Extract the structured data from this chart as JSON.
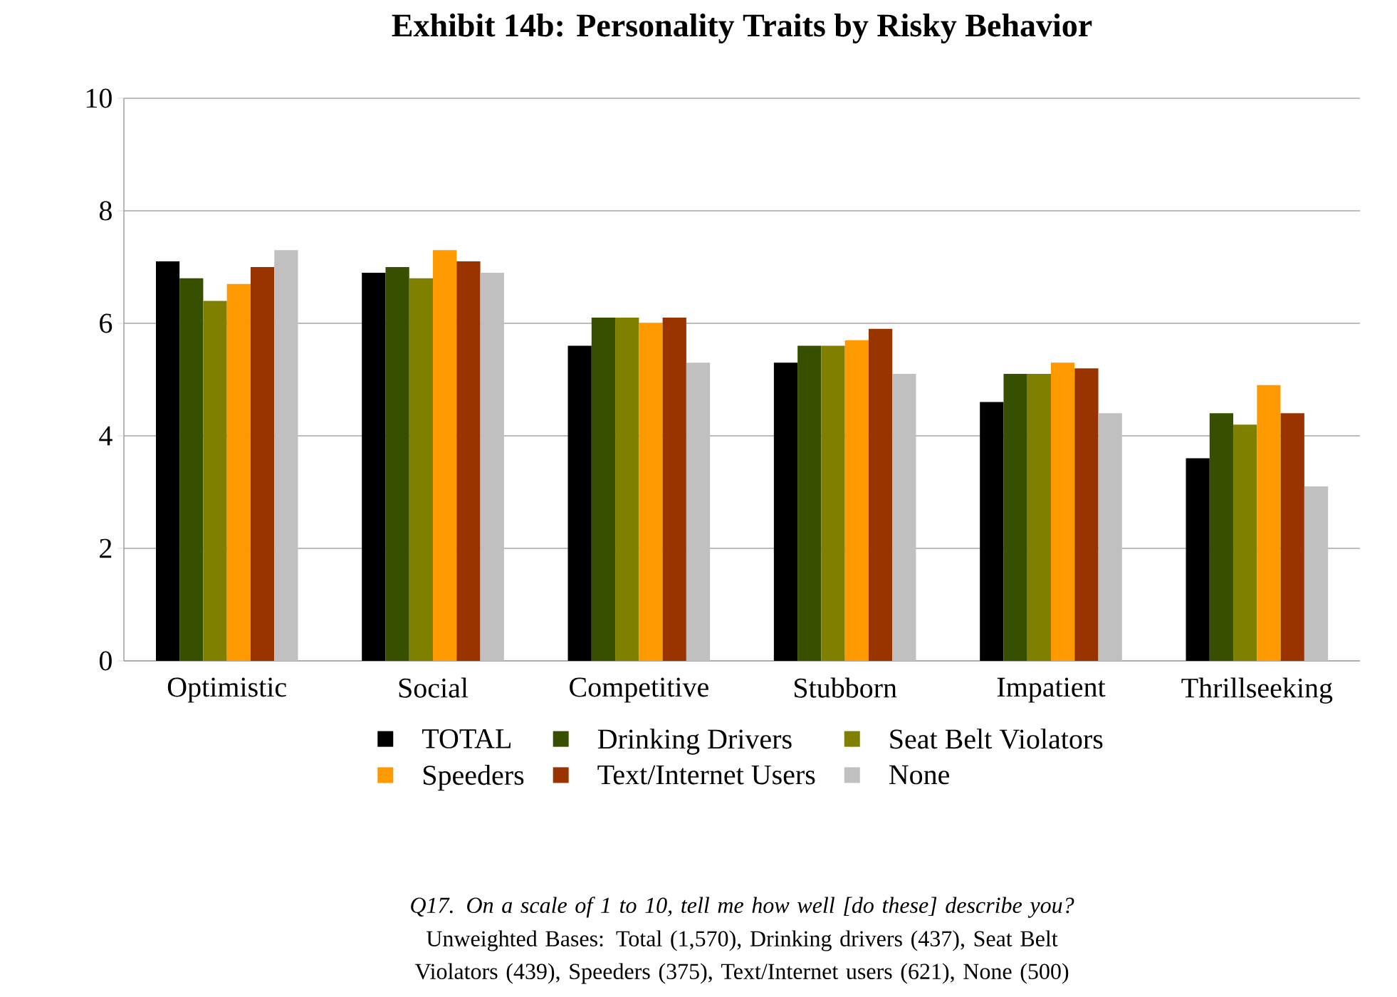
{
  "chart_data": {
    "type": "bar",
    "title": "Exhibit 14b: Personality Traits by Risky Behavior",
    "categories": [
      "Optimistic",
      "Social",
      "Competitive",
      "Stubborn",
      "Impatient",
      "Thrillseeking"
    ],
    "series": [
      {
        "name": "TOTAL",
        "color": "#000000",
        "values": [
          7.1,
          6.9,
          5.6,
          5.3,
          4.6,
          3.6
        ]
      },
      {
        "name": "Drinking Drivers",
        "color": "#375000",
        "values": [
          6.8,
          7.0,
          6.1,
          5.6,
          5.1,
          4.4
        ]
      },
      {
        "name": "Seat Belt Violators",
        "color": "#808000",
        "values": [
          6.4,
          6.8,
          6.1,
          5.6,
          5.1,
          4.2
        ]
      },
      {
        "name": "Speeders",
        "color": "#ff9900",
        "values": [
          6.7,
          7.3,
          6.0,
          5.7,
          5.3,
          4.9
        ]
      },
      {
        "name": "Text/Internet Users",
        "color": "#993300",
        "values": [
          7.0,
          7.1,
          6.1,
          5.9,
          5.2,
          4.4
        ]
      },
      {
        "name": "None",
        "color": "#c0c0c0",
        "values": [
          7.3,
          6.9,
          5.3,
          5.1,
          4.4,
          3.1
        ]
      }
    ],
    "ylim": [
      0,
      10
    ],
    "yticks": [
      0,
      2,
      4,
      6,
      8,
      10
    ],
    "grid": "y",
    "legend": "bottom",
    "annotations": [
      "Q17.  On a scale of 1 to 10, tell me how well [do these] describe you?",
      "Unweighted Bases: Total (1,570), Drinking drivers (437), Seat Belt Violators (439), Speeders (375), Text/Internet users (621), None (500)"
    ]
  }
}
